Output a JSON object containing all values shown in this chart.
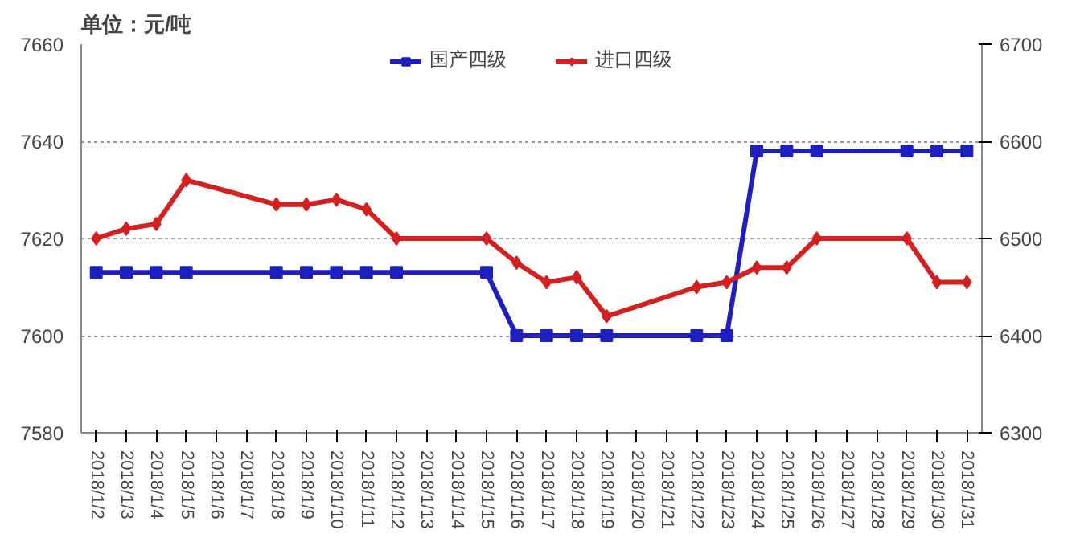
{
  "chart_data": {
    "type": "line",
    "ylabel": "单位：元/吨",
    "categories": [
      "2018/1/2",
      "2018/1/3",
      "2018/1/4",
      "2018/1/5",
      "2018/1/6",
      "2018/1/7",
      "2018/1/8",
      "2018/1/9",
      "2018/1/10",
      "2018/1/11",
      "2018/1/12",
      "2018/1/13",
      "2018/1/14",
      "2018/1/15",
      "2018/1/16",
      "2018/1/17",
      "2018/1/18",
      "2018/1/19",
      "2018/1/20",
      "2018/1/21",
      "2018/1/22",
      "2018/1/23",
      "2018/1/24",
      "2018/1/25",
      "2018/1/26",
      "2018/1/27",
      "2018/1/28",
      "2018/1/29",
      "2018/1/30",
      "2018/1/31"
    ],
    "series": [
      {
        "name": "国产四级",
        "color": "#1f1fbf",
        "marker": "square",
        "values": [
          7613,
          7613,
          7613,
          7613,
          null,
          null,
          7613,
          7613,
          7613,
          7613,
          7613,
          null,
          null,
          7613,
          7600,
          7600,
          7600,
          7600,
          null,
          null,
          7600,
          7600,
          7638,
          7638,
          7638,
          null,
          null,
          7638,
          7638,
          7638
        ]
      },
      {
        "name": "进口四级",
        "color": "#d42020",
        "marker": "diamond",
        "axis": "y2",
        "values": [
          6500,
          6510,
          6515,
          6560,
          null,
          null,
          6535,
          6535,
          6540,
          6530,
          6500,
          null,
          null,
          6500,
          6475,
          6455,
          6460,
          6420,
          null,
          null,
          6450,
          6455,
          6470,
          6470,
          6500,
          null,
          null,
          6500,
          6455,
          6455
        ]
      }
    ],
    "ylim": [
      7580,
      7660
    ],
    "yticks": [
      7580,
      7600,
      7620,
      7640,
      7660
    ],
    "y2lim": [
      6300,
      6700
    ],
    "y2ticks": [
      6300,
      6400,
      6500,
      6600,
      6700
    ],
    "grid": "y",
    "legend": "top",
    "line_style": "solid"
  }
}
